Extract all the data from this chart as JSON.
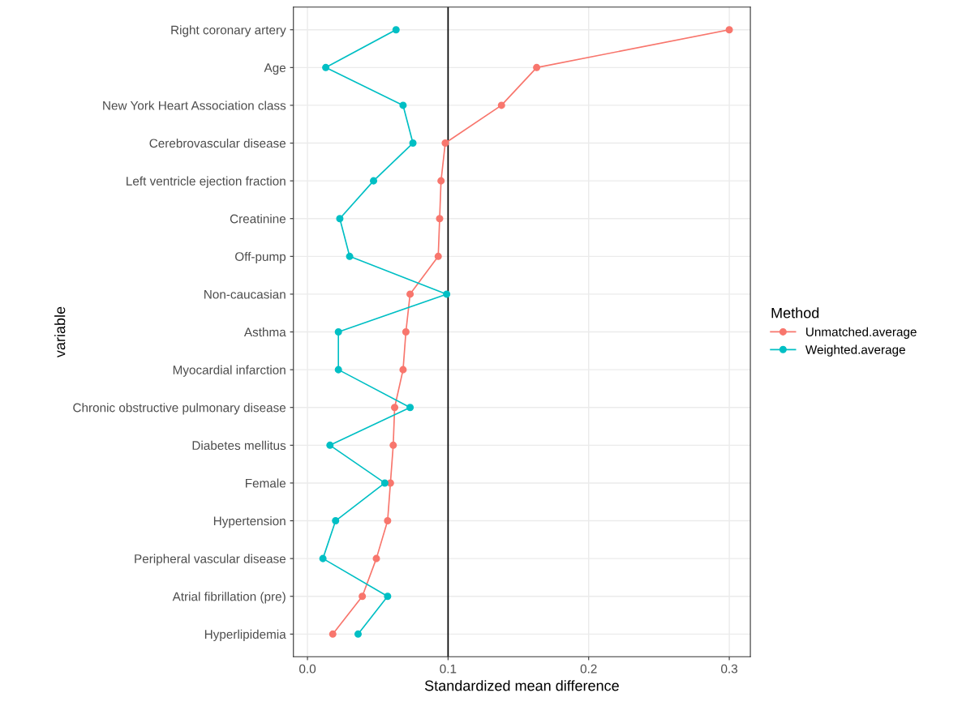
{
  "chart_data": {
    "type": "line",
    "orientation": "horizontal",
    "xlabel": "Standardized mean difference",
    "ylabel": "variable",
    "legend_title": "Method",
    "categories": [
      "Right coronary artery",
      "Age",
      "New York Heart Association class",
      "Cerebrovascular disease",
      "Left ventricle ejection fraction",
      "Creatinine",
      "Off-pump",
      "Non-caucasian",
      "Asthma",
      "Myocardial infarction",
      "Chronic obstructive pulmonary disease",
      "Diabetes mellitus",
      "Female",
      "Hypertension",
      "Peripheral vascular disease",
      "Atrial fibrillation (pre)",
      "Hyperlipidemia"
    ],
    "series": [
      {
        "name": "Unmatched.average",
        "color": "#f8766d",
        "values": [
          0.3,
          0.163,
          0.138,
          0.098,
          0.095,
          0.094,
          0.093,
          0.073,
          0.07,
          0.068,
          0.062,
          0.061,
          0.059,
          0.057,
          0.049,
          0.039,
          0.018
        ]
      },
      {
        "name": "Weighted.average",
        "color": "#00bfc4",
        "values": [
          0.063,
          0.013,
          0.068,
          0.075,
          0.047,
          0.023,
          0.03,
          0.099,
          0.022,
          0.022,
          0.073,
          0.016,
          0.055,
          0.02,
          0.011,
          0.057,
          0.036
        ]
      }
    ],
    "xlim": [
      -0.01,
      0.315
    ],
    "xticks": [
      {
        "value": 0.0,
        "label": "0.0"
      },
      {
        "value": 0.1,
        "label": "0.1"
      },
      {
        "value": 0.2,
        "label": "0.2"
      },
      {
        "value": 0.3,
        "label": "0.3"
      }
    ],
    "ref_lines": [
      {
        "axis": "x",
        "value": 0.1,
        "color": "#000000"
      }
    ],
    "grid": true,
    "legend": "right",
    "marker": "circle",
    "line_style": "solid"
  }
}
